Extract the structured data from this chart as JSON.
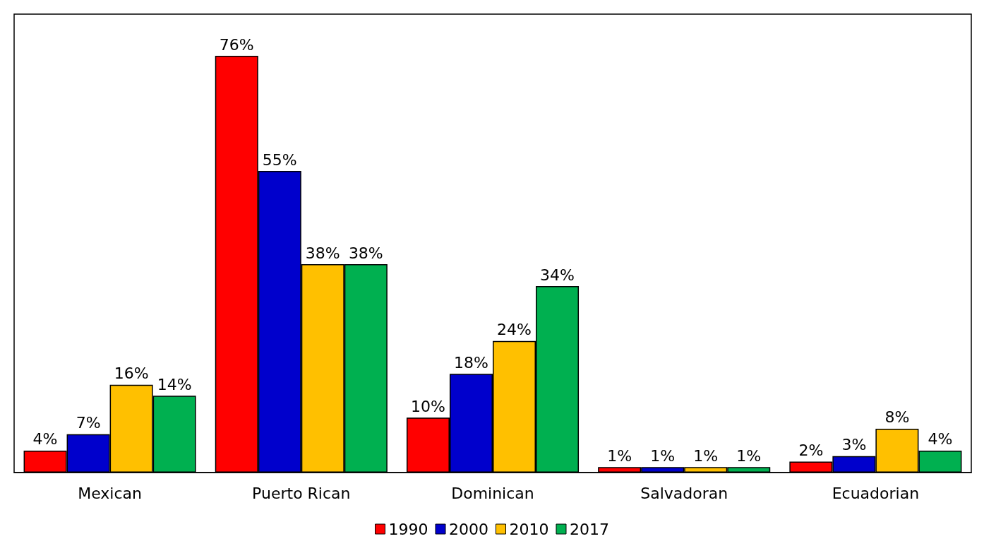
{
  "chart_data": {
    "type": "bar",
    "categories": [
      "Mexican",
      "Puerto Rican",
      "Dominican",
      "Salvadoran",
      "Ecuadorian"
    ],
    "series": [
      {
        "name": "1990",
        "color": "#ff0000",
        "values": [
          4,
          76,
          10,
          1,
          2
        ],
        "value_labels": [
          "4%",
          "76%",
          "10%",
          "1%",
          "2%"
        ]
      },
      {
        "name": "2000",
        "color": "#0000cc",
        "values": [
          7,
          55,
          18,
          1,
          3
        ],
        "value_labels": [
          "7%",
          "55%",
          "18%",
          "1%",
          "3%"
        ]
      },
      {
        "name": "2010",
        "color": "#ffc000",
        "values": [
          16,
          38,
          24,
          1,
          8
        ],
        "value_labels": [
          "16%",
          "38%",
          "24%",
          "1%",
          "8%"
        ]
      },
      {
        "name": "2017",
        "color": "#00b050",
        "values": [
          14,
          38,
          34,
          1,
          4
        ],
        "value_labels": [
          "14%",
          "38%",
          "34%",
          "1%",
          "4%"
        ]
      }
    ],
    "legend": "bottom",
    "grid": false
  }
}
